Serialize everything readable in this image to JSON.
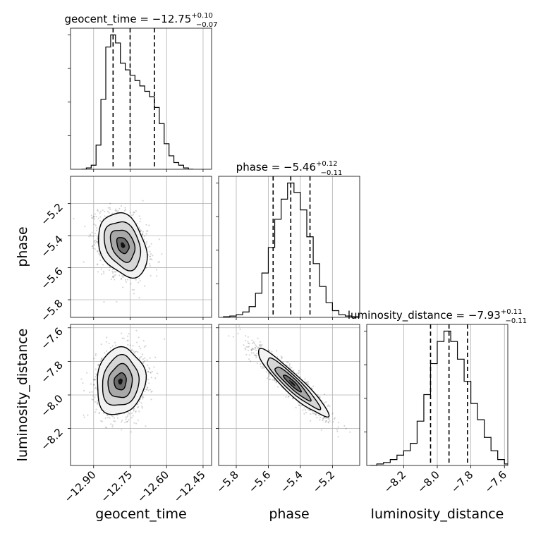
{
  "chart_data": {
    "type": "corner",
    "parameters": [
      "geocent_time",
      "phase",
      "luminosity_distance"
    ],
    "titles": [
      {
        "prefix": "geocent_time = −12.75",
        "upper": "+0.10",
        "lower": "−0.07"
      },
      {
        "prefix": "phase = −5.46",
        "upper": "+0.12",
        "lower": "−0.11"
      },
      {
        "prefix": "luminosity_distance = −7.93",
        "upper": "+0.11",
        "lower": "−0.11"
      }
    ],
    "ranges": [
      [
        -12.995,
        -12.415
      ],
      [
        -5.91,
        -5.03
      ],
      [
        -8.42,
        -7.58
      ]
    ],
    "ticks": [
      {
        "values": [
          -12.9,
          -12.75,
          -12.6,
          -12.45
        ],
        "labels": [
          "−12.90",
          "−12.75",
          "−12.60",
          "−12.45"
        ]
      },
      {
        "values": [
          -5.8,
          -5.6,
          -5.4,
          -5.2
        ],
        "labels": [
          "−5.8",
          "−5.6",
          "−5.4",
          "−5.2"
        ]
      },
      {
        "values": [
          -8.2,
          -8.0,
          -7.8,
          -7.6
        ],
        "labels": [
          "−8.2",
          "−8.0",
          "−7.8",
          "−7.6"
        ]
      }
    ],
    "quantiles": [
      [
        -12.82,
        -12.75,
        -12.65
      ],
      [
        -5.57,
        -5.46,
        -5.34
      ],
      [
        -8.04,
        -7.93,
        -7.82
      ]
    ],
    "histograms": [
      {
        "x": [
          -12.94,
          -12.92,
          -12.9,
          -12.88,
          -12.86,
          -12.84,
          -12.82,
          -12.8,
          -12.78,
          -12.76,
          -12.74,
          -12.72,
          -12.7,
          -12.68,
          -12.66,
          -12.64,
          -12.62,
          -12.6,
          -12.58,
          -12.56,
          -12.54,
          -12.52,
          -12.5
        ],
        "y": [
          0,
          0.01,
          0.03,
          0.18,
          0.52,
          0.91,
          1.0,
          0.94,
          0.79,
          0.74,
          0.7,
          0.66,
          0.62,
          0.58,
          0.54,
          0.46,
          0.34,
          0.19,
          0.1,
          0.05,
          0.03,
          0.01,
          0
        ]
      },
      {
        "x": [
          -5.86,
          -5.82,
          -5.78,
          -5.74,
          -5.7,
          -5.66,
          -5.62,
          -5.58,
          -5.54,
          -5.5,
          -5.46,
          -5.42,
          -5.38,
          -5.34,
          -5.3,
          -5.26,
          -5.22,
          -5.18,
          -5.14,
          -5.1,
          -5.06
        ],
        "y": [
          0.005,
          0.01,
          0.02,
          0.04,
          0.08,
          0.18,
          0.33,
          0.52,
          0.73,
          0.88,
          1.0,
          0.93,
          0.8,
          0.6,
          0.4,
          0.23,
          0.11,
          0.05,
          0.02,
          0.01,
          0.005
        ]
      },
      {
        "x": [
          -8.38,
          -8.34,
          -8.3,
          -8.26,
          -8.22,
          -8.18,
          -8.14,
          -8.1,
          -8.06,
          -8.02,
          -7.98,
          -7.94,
          -7.9,
          -7.86,
          -7.82,
          -7.78,
          -7.74,
          -7.7,
          -7.66,
          -7.62,
          -7.58
        ],
        "y": [
          0,
          0.01,
          0.02,
          0.04,
          0.07,
          0.1,
          0.15,
          0.3,
          0.48,
          0.69,
          0.84,
          0.91,
          0.84,
          0.72,
          0.57,
          0.42,
          0.31,
          0.19,
          0.1,
          0.04,
          0.01
        ]
      }
    ],
    "density_2d": [
      {
        "x": 1,
        "y": 0,
        "cx": -12.78,
        "cy": -5.46,
        "sx": 0.05,
        "sy": 0.1,
        "rho": -0.3
      },
      {
        "x": 2,
        "y": 0,
        "cx": -12.79,
        "cy": -7.92,
        "sx": 0.05,
        "sy": 0.1,
        "rho": 0.1
      },
      {
        "x": 2,
        "y": 1,
        "cx": -5.45,
        "cy": -7.93,
        "sx": 0.11,
        "sy": 0.1,
        "rho": -0.93
      }
    ]
  }
}
